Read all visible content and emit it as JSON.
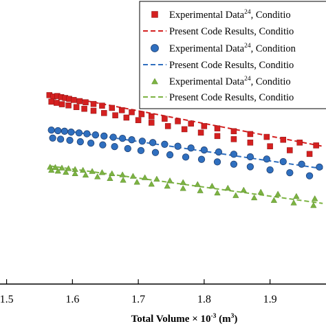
{
  "chart_data": {
    "type": "scatter",
    "title": "",
    "xlabel": "Total Volume × 10",
    "xlabel_exp": "-3",
    "xlabel_units_pre": " (m",
    "xlabel_units_exp": "3",
    "xlabel_units_post": ")",
    "ylabel": "",
    "xlim": [
      1.49,
      1.985
    ],
    "ylim": [
      0,
      100
    ],
    "grid": false,
    "legend_position": "top-right",
    "x_ticks": [
      {
        "value": 1.5,
        "label": "1.5"
      },
      {
        "value": 1.6,
        "label": "1.6"
      },
      {
        "value": 1.7,
        "label": "1.7"
      },
      {
        "value": 1.8,
        "label": "1.8"
      },
      {
        "value": 1.9,
        "label": "1.9"
      }
    ],
    "series": [
      {
        "name": "Experimental Data",
        "name_sup": "24",
        "name_suffix": ", Conditio",
        "kind": "marker",
        "marker": "square",
        "color": "#d42020",
        "x": [
          1.565,
          1.571,
          1.577,
          1.583,
          1.589,
          1.595,
          1.602,
          1.611,
          1.62,
          1.632,
          1.645,
          1.66,
          1.675,
          1.69,
          1.705,
          1.72,
          1.74,
          1.76,
          1.78,
          1.8,
          1.82,
          1.845,
          1.87,
          1.895,
          1.92,
          1.945,
          1.97,
          1.568,
          1.576,
          1.584,
          1.594,
          1.606,
          1.618,
          1.632,
          1.648,
          1.665,
          1.682,
          1.7,
          1.72,
          1.745,
          1.77,
          1.795,
          1.82,
          1.845,
          1.87,
          1.9,
          1.93,
          1.96
        ],
        "y": [
          66.5,
          66.0,
          66.2,
          65.8,
          65.5,
          65.2,
          64.8,
          64.4,
          64.0,
          63.4,
          62.8,
          62.0,
          61.2,
          60.5,
          59.8,
          59.0,
          58.2,
          57.3,
          56.5,
          55.6,
          54.8,
          53.8,
          52.8,
          51.8,
          50.8,
          49.8,
          48.8,
          64.2,
          63.8,
          63.3,
          62.9,
          62.3,
          61.7,
          61.0,
          60.2,
          59.4,
          58.6,
          57.7,
          56.8,
          55.6,
          54.5,
          53.3,
          52.1,
          51.0,
          49.8,
          48.5,
          47.1,
          45.8
        ]
      },
      {
        "name": "Present Code Results",
        "name_suffix": ", Conditio",
        "kind": "line",
        "color": "#d42020",
        "x": [
          1.565,
          1.98
        ],
        "y": [
          67.0,
          48.5
        ]
      },
      {
        "name": "Experimental Data",
        "name_sup": "24",
        "name_suffix": ", Condition",
        "kind": "marker",
        "marker": "circle",
        "color": "#2f6fbf",
        "x": [
          1.568,
          1.578,
          1.588,
          1.598,
          1.61,
          1.622,
          1.635,
          1.648,
          1.662,
          1.676,
          1.69,
          1.706,
          1.722,
          1.74,
          1.76,
          1.78,
          1.8,
          1.822,
          1.845,
          1.87,
          1.895,
          1.92,
          1.948,
          1.975,
          1.57,
          1.582,
          1.596,
          1.612,
          1.628,
          1.646,
          1.664,
          1.684,
          1.704,
          1.726,
          1.748,
          1.772,
          1.796,
          1.82,
          1.845,
          1.87,
          1.9,
          1.93,
          1.96
        ],
        "y": [
          54.2,
          54.0,
          53.8,
          53.5,
          53.2,
          52.9,
          52.5,
          52.1,
          51.7,
          51.3,
          50.8,
          50.3,
          49.8,
          49.2,
          48.5,
          47.9,
          47.2,
          46.5,
          45.7,
          44.8,
          44.0,
          43.1,
          42.2,
          41.2,
          51.4,
          51.0,
          50.6,
          50.1,
          49.6,
          49.0,
          48.4,
          47.7,
          47.0,
          46.3,
          45.5,
          44.7,
          43.9,
          43.0,
          42.2,
          41.3,
          40.2,
          39.2,
          38.1
        ]
      },
      {
        "name": "Present Code Results",
        "name_suffix": ", Conditio",
        "kind": "line",
        "color": "#2f6fbf",
        "x": [
          1.565,
          1.98
        ],
        "y": [
          54.8,
          40.6
        ]
      },
      {
        "name": "Experimental Data",
        "name_sup": "24",
        "name_suffix": ", Conditio",
        "kind": "marker",
        "marker": "triangle",
        "color": "#7cb342",
        "x": [
          1.566,
          1.574,
          1.584,
          1.594,
          1.604,
          1.616,
          1.63,
          1.645,
          1.66,
          1.676,
          1.692,
          1.71,
          1.728,
          1.748,
          1.768,
          1.79,
          1.812,
          1.836,
          1.86,
          1.886,
          1.912,
          1.94,
          1.968,
          1.568,
          1.578,
          1.59,
          1.604,
          1.62,
          1.638,
          1.657,
          1.677,
          1.698,
          1.72,
          1.744,
          1.768,
          1.794,
          1.82,
          1.848,
          1.876,
          1.906,
          1.936,
          1.966
        ],
        "y": [
          41.3,
          41.2,
          41.0,
          40.8,
          40.5,
          40.2,
          39.8,
          39.4,
          39.0,
          38.6,
          38.1,
          37.6,
          37.1,
          36.5,
          35.9,
          35.2,
          34.6,
          33.9,
          33.2,
          32.5,
          31.8,
          31.0,
          30.2,
          40.2,
          39.9,
          39.5,
          39.0,
          38.5,
          37.9,
          37.3,
          36.7,
          36.0,
          35.3,
          34.6,
          33.8,
          33.0,
          32.2,
          31.3,
          30.5,
          29.6,
          28.7,
          27.8
        ]
      },
      {
        "name": "Present Code Results",
        "name_suffix": ", Conditio",
        "kind": "line",
        "color": "#7cb342",
        "x": [
          1.565,
          1.98
        ],
        "y": [
          41.6,
          28.4
        ]
      }
    ]
  }
}
